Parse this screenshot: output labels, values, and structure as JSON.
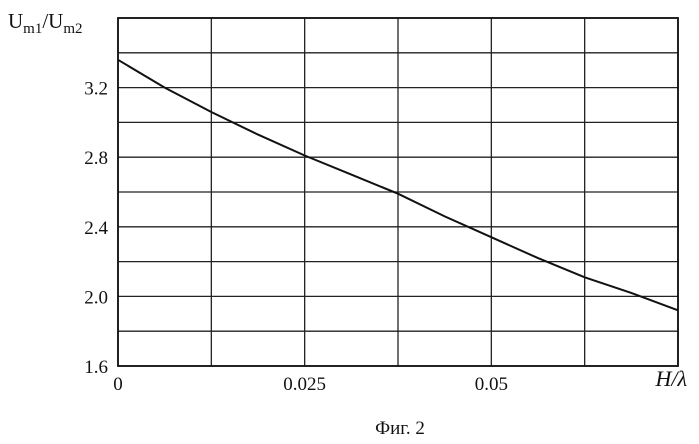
{
  "chart_data": {
    "type": "line",
    "ylabel_main": "U",
    "ylabel_sub1": "m1",
    "ylabel_sep": "/U",
    "ylabel_sub2": "m2",
    "xlabel": "H/λ",
    "caption": "Фиг. 2",
    "xlim": [
      0,
      0.075
    ],
    "ylim": [
      1.6,
      3.6
    ],
    "x_ticks": [
      0,
      0.0125,
      0.025,
      0.0375,
      0.05,
      0.0625,
      0.075
    ],
    "x_tick_labels": [
      "0",
      "",
      "0.025",
      "",
      "0.05",
      "",
      ""
    ],
    "y_ticks": [
      1.6,
      1.8,
      2.0,
      2.2,
      2.4,
      2.6,
      2.8,
      3.0,
      3.2,
      3.4,
      3.6
    ],
    "y_tick_labels": [
      "1.6",
      "",
      "2.0",
      "",
      "2.4",
      "",
      "2.8",
      "",
      "3.2",
      "",
      ""
    ],
    "grid": true,
    "series": [
      {
        "x": [
          0,
          0.00625,
          0.0125,
          0.01875,
          0.025,
          0.03125,
          0.0375,
          0.04375,
          0.05,
          0.05625,
          0.0625,
          0.06875,
          0.075
        ],
        "y": [
          3.36,
          3.2,
          3.06,
          2.93,
          2.81,
          2.7,
          2.59,
          2.46,
          2.34,
          2.22,
          2.11,
          2.02,
          1.92
        ]
      }
    ]
  }
}
